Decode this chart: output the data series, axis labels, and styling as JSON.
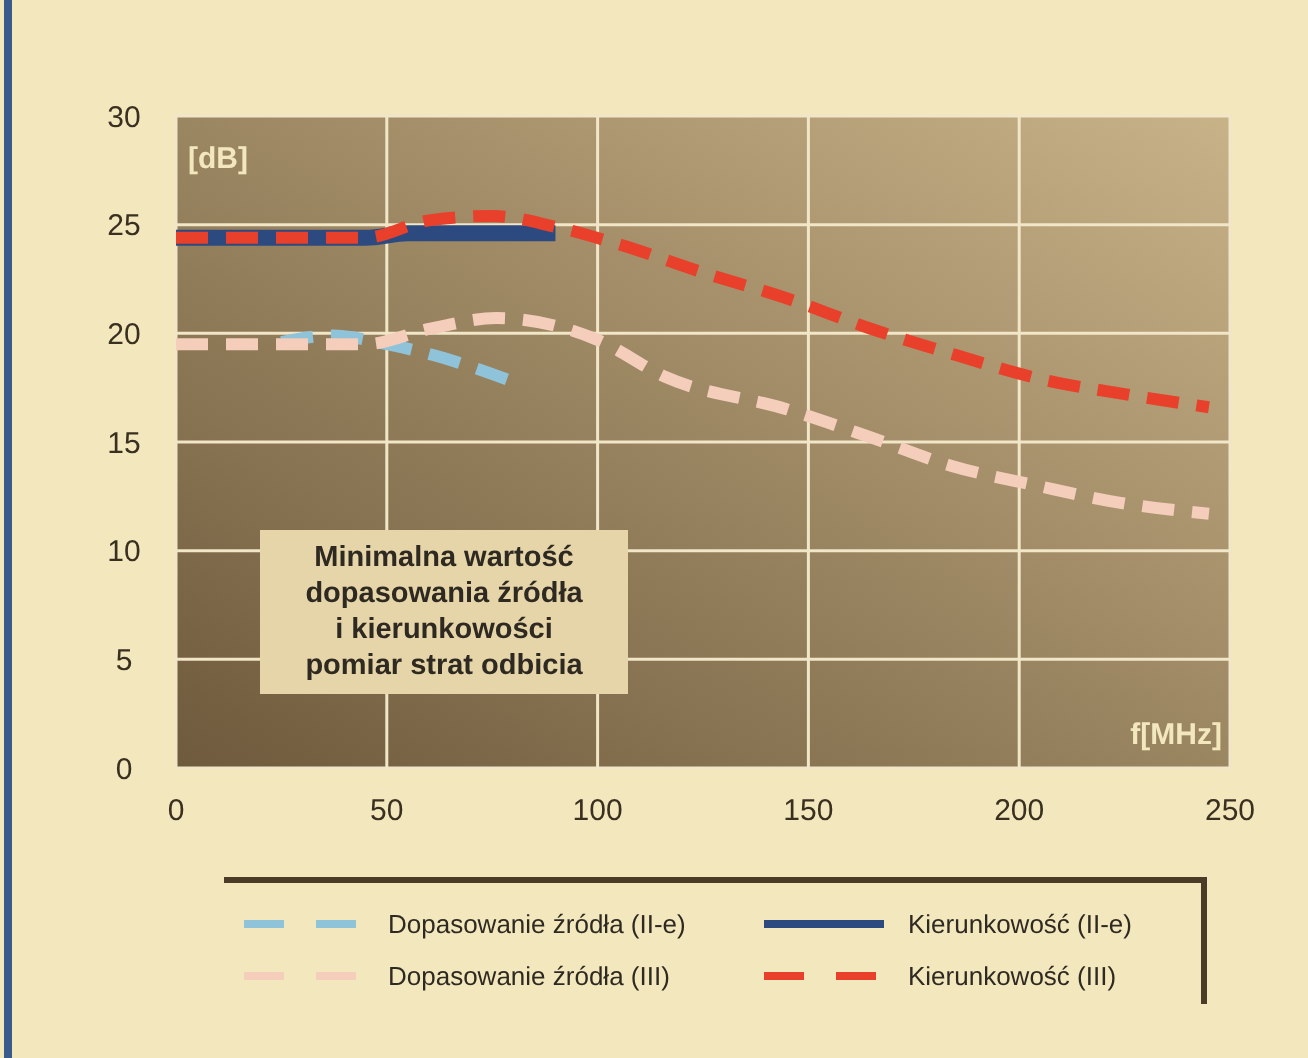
{
  "chart_data": {
    "type": "line",
    "xlabel": "f[MHz]",
    "ylabel": "[dB]",
    "xlim": [
      0,
      250
    ],
    "xticks": [
      0,
      50,
      100,
      150,
      200,
      250
    ],
    "ylim": [
      0,
      30
    ],
    "yticks": [
      0,
      5,
      10,
      15,
      20,
      25,
      30
    ],
    "grid": true,
    "legend": "bottom",
    "annotations": [
      "Minimalna wartość\ndopasowania źródła\ni kierunkowości\npomiar strat odbicia"
    ],
    "series": [
      {
        "name": "Dopasowanie źródła (II-e)",
        "color": "#8fc3da",
        "line_style": "dashed",
        "x": [
          25,
          37,
          50,
          61,
          81
        ],
        "values": [
          19.6,
          19.9,
          19.5,
          19.0,
          17.7
        ]
      },
      {
        "name": "Kierunkowość (II-e)",
        "color": "#2c4a80",
        "line_style": "solid",
        "x": [
          0,
          45,
          55,
          90
        ],
        "values": [
          24.4,
          24.4,
          24.6,
          24.6
        ]
      },
      {
        "name": "Dopasowanie źródła (III)",
        "color": "#f5cdbb",
        "line_style": "dashed",
        "x": [
          0,
          45,
          60,
          76,
          100,
          116,
          145,
          165,
          184,
          204,
          224,
          245
        ],
        "values": [
          19.5,
          19.5,
          20.2,
          20.7,
          19.7,
          18.0,
          16.5,
          15.2,
          13.9,
          13.0,
          12.2,
          11.7
        ]
      },
      {
        "name": "Kierunkowość (III)",
        "color": "#e8402a",
        "line_style": "dashed",
        "x": [
          0,
          45,
          60,
          75,
          90,
          105,
          125,
          145,
          165,
          185,
          205,
          225,
          245
        ],
        "values": [
          24.4,
          24.4,
          25.2,
          25.4,
          24.9,
          24.1,
          22.8,
          21.6,
          20.2,
          19.0,
          17.9,
          17.2,
          16.6
        ]
      }
    ]
  }
}
